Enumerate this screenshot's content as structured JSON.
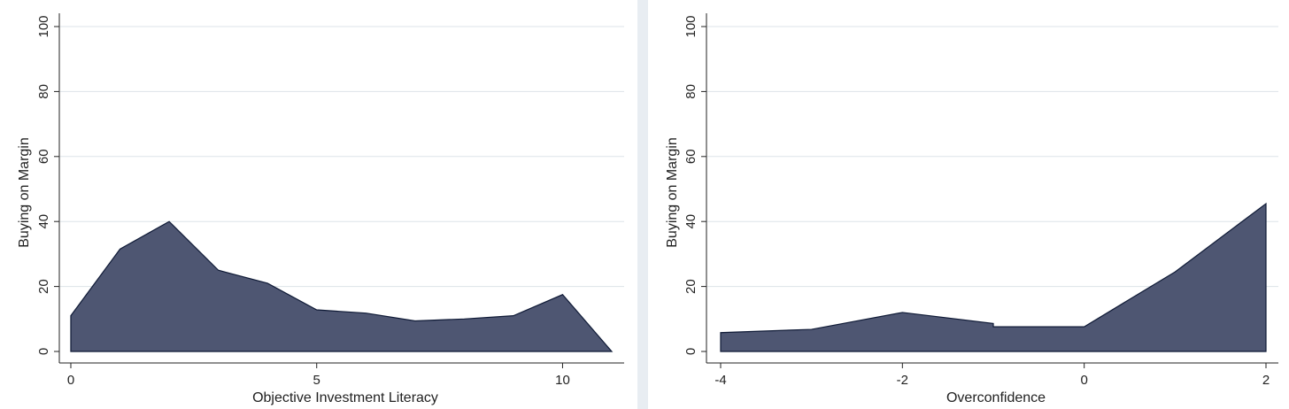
{
  "colors": {
    "area_fill": "#4e5672",
    "area_edge": "#0f1a36",
    "grid": "#dde3e8",
    "panel_background": "#ffffff",
    "outer_background": "#e8edf2"
  },
  "chart_data": [
    {
      "type": "area",
      "xlabel": "Objective Investment Literacy",
      "ylabel": "Buying on Margin",
      "xlim": [
        0,
        11
      ],
      "ylim": [
        0,
        100
      ],
      "xticks": [
        0,
        5,
        10
      ],
      "xtick_labels": [
        "0",
        "5",
        "10"
      ],
      "yticks": [
        0,
        20,
        40,
        60,
        80,
        100
      ],
      "ytick_labels": [
        "0",
        "20",
        "40",
        "60",
        "80",
        "100"
      ],
      "grid": "horizontal",
      "series": [
        {
          "x": [
            0,
            1,
            2,
            3,
            4,
            5,
            6,
            7,
            8,
            9,
            10,
            11
          ],
          "y": [
            11,
            31.5,
            40,
            25,
            21,
            12.8,
            11.8,
            9.4,
            10,
            11,
            17.5,
            0
          ]
        }
      ]
    },
    {
      "type": "area",
      "xlabel": "Overconfidence",
      "ylabel": "Buying on Margin",
      "xlim": [
        -4,
        2
      ],
      "ylim": [
        0,
        100
      ],
      "xticks": [
        -4,
        -2,
        0,
        2
      ],
      "xtick_labels": [
        "-4",
        "-2",
        "0",
        "2"
      ],
      "yticks": [
        0,
        20,
        40,
        60,
        80,
        100
      ],
      "ytick_labels": [
        "0",
        "20",
        "40",
        "60",
        "80",
        "100"
      ],
      "grid": "horizontal",
      "series": [
        {
          "x": [
            -4,
            -3,
            -2,
            -1,
            -1,
            0,
            1,
            2
          ],
          "y": [
            5.8,
            6.8,
            12,
            8.6,
            7.6,
            7.6,
            24.5,
            45.5
          ]
        }
      ]
    }
  ]
}
